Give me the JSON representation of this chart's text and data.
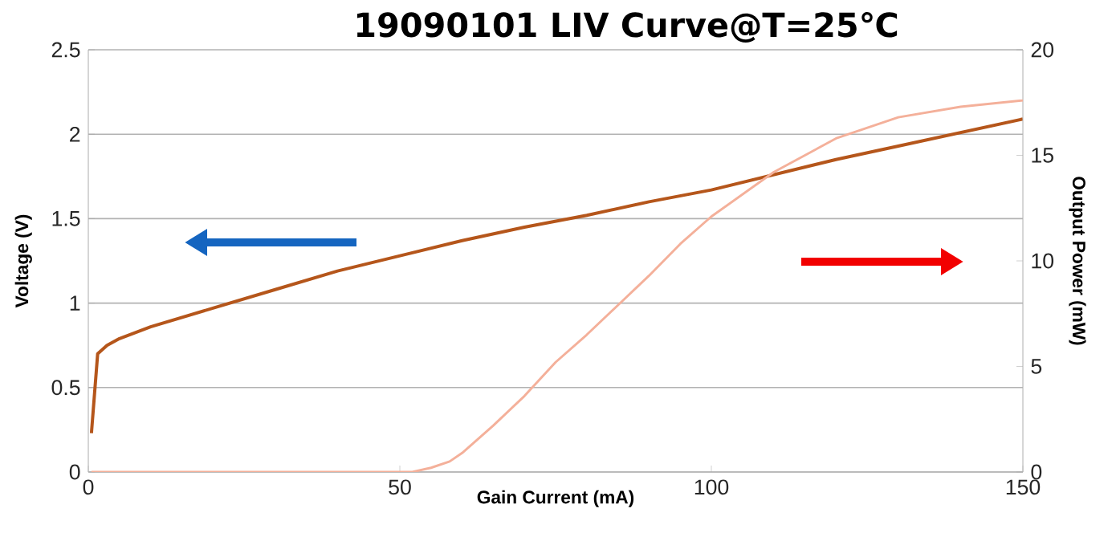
{
  "chart_data": {
    "type": "line",
    "title": "19090101 LIV Curve@T=25℃",
    "xlabel": "Gain Current (mA)",
    "ylabel": "Voltage (V)",
    "y2label": "Output Power (mW)",
    "xlim": [
      0,
      150
    ],
    "xticks": [
      0,
      50,
      100,
      150
    ],
    "ylim": [
      0,
      2.5
    ],
    "yticks": [
      0,
      0.5,
      1,
      1.5,
      2,
      2.5
    ],
    "y2lim": [
      0,
      20
    ],
    "y2ticks": [
      0,
      5,
      10,
      15,
      20
    ],
    "grid": "y",
    "marker": "none",
    "line_style": "solid",
    "series": [
      {
        "color": "#b5561b",
        "x": [
          0.5,
          1.5,
          3,
          5,
          10,
          20,
          30,
          40,
          50,
          60,
          70,
          80,
          90,
          100,
          110,
          120,
          130,
          140,
          150
        ],
        "values": [
          0.23,
          0.7,
          0.75,
          0.79,
          0.86,
          0.97,
          1.08,
          1.19,
          1.28,
          1.37,
          1.45,
          1.52,
          1.6,
          1.67,
          1.76,
          1.85,
          1.93,
          2.01,
          2.09
        ]
      },
      {
        "color": "#f4b09a",
        "axis": "y2",
        "x": [
          0.5,
          10,
          20,
          30,
          40,
          50,
          52,
          55,
          58,
          60,
          65,
          70,
          75,
          80,
          85,
          90,
          95,
          100,
          110,
          120,
          130,
          140,
          150
        ],
        "values": [
          0,
          0,
          0,
          0,
          0,
          0,
          0,
          0.2,
          0.5,
          0.9,
          2.2,
          3.6,
          5.2,
          6.5,
          7.9,
          9.3,
          10.8,
          12.1,
          14.2,
          15.8,
          16.8,
          17.3,
          17.6
        ]
      }
    ]
  }
}
